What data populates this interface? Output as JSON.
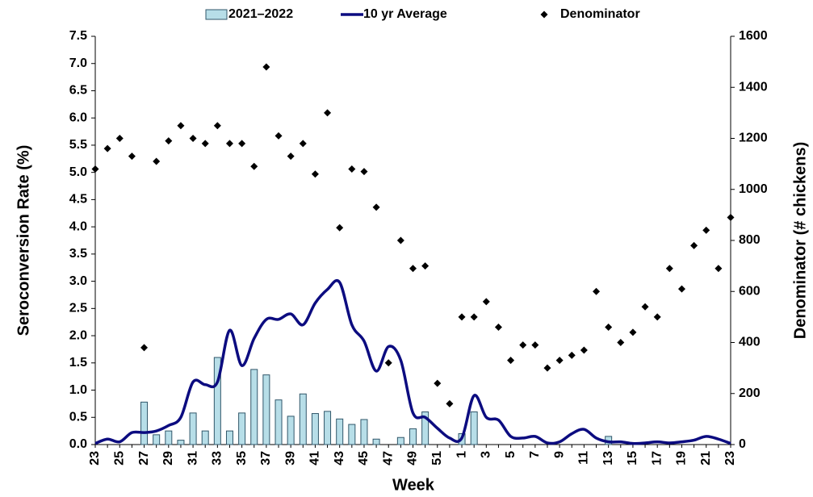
{
  "chart_data": {
    "type": "combo",
    "x_label": "Week",
    "y_label": "Seroconversion Rate (%)",
    "y2_label": "Denominator  (# chickens)",
    "categories": [
      "23",
      null,
      "25",
      null,
      "27",
      null,
      "29",
      null,
      "31",
      null,
      "33",
      null,
      "35",
      null,
      "37",
      null,
      "39",
      null,
      "41",
      null,
      "43",
      null,
      "45",
      null,
      "47",
      null,
      "49",
      null,
      "51",
      null,
      "1",
      null,
      "3",
      null,
      "5",
      null,
      "7",
      null,
      "9",
      null,
      "11",
      null,
      "13",
      null,
      "15",
      null,
      "17",
      null,
      "19",
      null,
      "21",
      null,
      "23"
    ],
    "ylim": [
      0,
      7.5
    ],
    "yticks": [
      {
        "value": 0,
        "label": "0.0"
      },
      {
        "value": 0.5,
        "label": "0.5"
      },
      {
        "value": 1,
        "label": "1.0"
      },
      {
        "value": 1.5,
        "label": "1.5"
      },
      {
        "value": 2,
        "label": "2.0"
      },
      {
        "value": 2.5,
        "label": "2.5"
      },
      {
        "value": 3,
        "label": "3.0"
      },
      {
        "value": 3.5,
        "label": "3.5"
      },
      {
        "value": 4,
        "label": "4.0"
      },
      {
        "value": 4.5,
        "label": "4.5"
      },
      {
        "value": 5,
        "label": "5.0"
      },
      {
        "value": 5.5,
        "label": "5.5"
      },
      {
        "value": 6,
        "label": "6.0"
      },
      {
        "value": 6.5,
        "label": "6.5"
      },
      {
        "value": 7,
        "label": "7.0"
      },
      {
        "value": 7.5,
        "label": "7.5"
      }
    ],
    "y2lim": [
      0,
      1600
    ],
    "y2ticks": [
      0,
      200,
      400,
      600,
      800,
      1000,
      1200,
      1400,
      1600
    ],
    "series": [
      {
        "name": "2021–2022",
        "kind": "bar",
        "color": "#b7dee8",
        "values": [
          0,
          0,
          0,
          0,
          0.78,
          0.18,
          0.25,
          0.08,
          0.58,
          0.25,
          1.6,
          0.25,
          0.58,
          1.38,
          1.28,
          0.82,
          0.52,
          0.93,
          0.57,
          0.61,
          0.47,
          0.37,
          0.46,
          0.1,
          0,
          0.13,
          0.29,
          0.6,
          0,
          0,
          0.2,
          0.6,
          0,
          0,
          0,
          0,
          0,
          0,
          0,
          0,
          0,
          0,
          0.15,
          0,
          0,
          0,
          0,
          0,
          0,
          0,
          0,
          0,
          0
        ]
      },
      {
        "name": "10 yr Average",
        "kind": "line",
        "color": "#0c0c80",
        "values": [
          0.02,
          0.1,
          0.05,
          0.22,
          0.22,
          0.25,
          0.35,
          0.5,
          1.15,
          1.1,
          1.15,
          2.1,
          1.45,
          1.95,
          2.3,
          2.3,
          2.4,
          2.2,
          2.6,
          2.85,
          2.98,
          2.2,
          1.9,
          1.35,
          1.8,
          1.55,
          0.58,
          0.5,
          0.3,
          0.12,
          0.12,
          0.9,
          0.5,
          0.45,
          0.15,
          0.12,
          0.15,
          0.03,
          0.05,
          0.2,
          0.28,
          0.12,
          0.05,
          0.05,
          0.02,
          0.03,
          0.05,
          0.03,
          0.05,
          0.08,
          0.15,
          0.1,
          0.02
        ]
      },
      {
        "name": "Denominator",
        "kind": "scatter",
        "axis": "y2",
        "color": "#000000",
        "values": [
          1080,
          1160,
          1200,
          1130,
          380,
          1110,
          1190,
          1250,
          1200,
          1180,
          1250,
          1180,
          1180,
          1090,
          1480,
          1210,
          1130,
          1180,
          1060,
          1300,
          850,
          1080,
          1070,
          930,
          320,
          800,
          690,
          700,
          240,
          160,
          500,
          500,
          560,
          460,
          330,
          390,
          390,
          300,
          330,
          350,
          370,
          600,
          460,
          400,
          440,
          540,
          500,
          690,
          610,
          780,
          840,
          690,
          890
        ]
      }
    ]
  }
}
